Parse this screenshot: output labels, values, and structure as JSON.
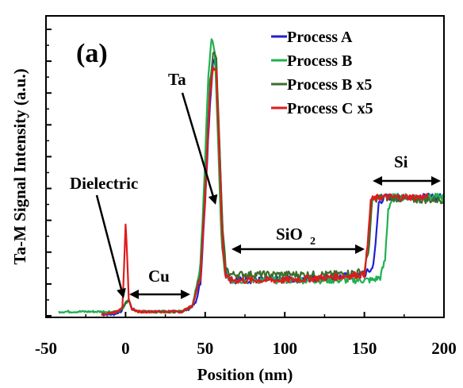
{
  "chart_data": {
    "type": "line",
    "title": "",
    "panel_label": "(a)",
    "xlabel": "Position (nm)",
    "ylabel": "Ta-M Signal Intensity (a.u.)",
    "xlim": [
      -50,
      200
    ],
    "ylim": [
      0,
      1
    ],
    "x_ticks": [
      -50,
      0,
      50,
      100,
      150,
      200
    ],
    "y_tick_labels_shown": false,
    "grid": false,
    "legend_position": "top-right",
    "series": [
      {
        "name": "Process A",
        "color": "#1f1fd6",
        "points": [
          [
            -15,
            0.01
          ],
          [
            -8,
            0.01
          ],
          [
            -3,
            0.02
          ],
          [
            0,
            0.05
          ],
          [
            2,
            0.06
          ],
          [
            4,
            0.03
          ],
          [
            8,
            0.02
          ],
          [
            20,
            0.02
          ],
          [
            35,
            0.02
          ],
          [
            40,
            0.03
          ],
          [
            44,
            0.05
          ],
          [
            47,
            0.12
          ],
          [
            50,
            0.4
          ],
          [
            53,
            0.75
          ],
          [
            55,
            0.9
          ],
          [
            57,
            0.86
          ],
          [
            59,
            0.6
          ],
          [
            61,
            0.3
          ],
          [
            63,
            0.16
          ],
          [
            66,
            0.13
          ],
          [
            75,
            0.13
          ],
          [
            100,
            0.13
          ],
          [
            130,
            0.14
          ],
          [
            150,
            0.15
          ],
          [
            155,
            0.17
          ],
          [
            157,
            0.25
          ],
          [
            159,
            0.4
          ],
          [
            163,
            0.42
          ],
          [
            180,
            0.42
          ],
          [
            200,
            0.42
          ]
        ]
      },
      {
        "name": "Process B",
        "color": "#20b050",
        "points": [
          [
            -42,
            0.02
          ],
          [
            -30,
            0.02
          ],
          [
            -15,
            0.02
          ],
          [
            -5,
            0.02
          ],
          [
            -2,
            0.03
          ],
          [
            0,
            0.05
          ],
          [
            2,
            0.06
          ],
          [
            4,
            0.03
          ],
          [
            8,
            0.02
          ],
          [
            20,
            0.02
          ],
          [
            35,
            0.02
          ],
          [
            42,
            0.04
          ],
          [
            47,
            0.18
          ],
          [
            50,
            0.55
          ],
          [
            52,
            0.85
          ],
          [
            54,
            0.97
          ],
          [
            56,
            0.93
          ],
          [
            58,
            0.62
          ],
          [
            60,
            0.3
          ],
          [
            62,
            0.16
          ],
          [
            66,
            0.13
          ],
          [
            75,
            0.13
          ],
          [
            100,
            0.13
          ],
          [
            130,
            0.13
          ],
          [
            155,
            0.13
          ],
          [
            160,
            0.14
          ],
          [
            163,
            0.2
          ],
          [
            165,
            0.38
          ],
          [
            168,
            0.42
          ],
          [
            185,
            0.42
          ],
          [
            200,
            0.42
          ]
        ]
      },
      {
        "name": "Process B x5",
        "color": "#3c6e2c",
        "points": [
          [
            -15,
            0.01
          ],
          [
            -5,
            0.02
          ],
          [
            -2,
            0.03
          ],
          [
            0,
            0.05
          ],
          [
            2,
            0.06
          ],
          [
            4,
            0.03
          ],
          [
            8,
            0.02
          ],
          [
            20,
            0.02
          ],
          [
            35,
            0.02
          ],
          [
            42,
            0.04
          ],
          [
            47,
            0.15
          ],
          [
            50,
            0.45
          ],
          [
            53,
            0.82
          ],
          [
            55,
            0.93
          ],
          [
            57,
            0.9
          ],
          [
            59,
            0.6
          ],
          [
            61,
            0.3
          ],
          [
            63,
            0.17
          ],
          [
            66,
            0.15
          ],
          [
            75,
            0.15
          ],
          [
            100,
            0.15
          ],
          [
            130,
            0.15
          ],
          [
            150,
            0.16
          ],
          [
            153,
            0.25
          ],
          [
            155,
            0.41
          ],
          [
            160,
            0.42
          ],
          [
            180,
            0.41
          ],
          [
            200,
            0.41
          ]
        ]
      },
      {
        "name": "Process C x5",
        "color": "#e11a1a",
        "points": [
          [
            -15,
            0.01
          ],
          [
            -5,
            0.02
          ],
          [
            -2,
            0.04
          ],
          [
            -1,
            0.18
          ],
          [
            0,
            0.33
          ],
          [
            1,
            0.2
          ],
          [
            2,
            0.06
          ],
          [
            4,
            0.03
          ],
          [
            8,
            0.02
          ],
          [
            20,
            0.02
          ],
          [
            35,
            0.02
          ],
          [
            42,
            0.04
          ],
          [
            47,
            0.14
          ],
          [
            50,
            0.42
          ],
          [
            53,
            0.78
          ],
          [
            55,
            0.88
          ],
          [
            57,
            0.86
          ],
          [
            59,
            0.55
          ],
          [
            61,
            0.25
          ],
          [
            63,
            0.14
          ],
          [
            66,
            0.13
          ],
          [
            75,
            0.13
          ],
          [
            100,
            0.13
          ],
          [
            130,
            0.14
          ],
          [
            150,
            0.15
          ],
          [
            152,
            0.25
          ],
          [
            154,
            0.41
          ],
          [
            160,
            0.42
          ],
          [
            175,
            0.42
          ],
          [
            190,
            0.42
          ]
        ]
      }
    ],
    "annotations": [
      {
        "id": "dielectric",
        "text": "Dielectric",
        "x": -8,
        "y": 0.5
      },
      {
        "id": "ta",
        "text": "Ta",
        "x": 28,
        "y": 0.8
      },
      {
        "id": "cu",
        "text": "Cu",
        "x": 20,
        "y": 0.15
      },
      {
        "id": "sio2",
        "text": "SiO",
        "subscript": "2",
        "x": 100,
        "y": 0.27
      },
      {
        "id": "si",
        "text": "Si",
        "x": 176,
        "y": 0.49
      }
    ]
  }
}
